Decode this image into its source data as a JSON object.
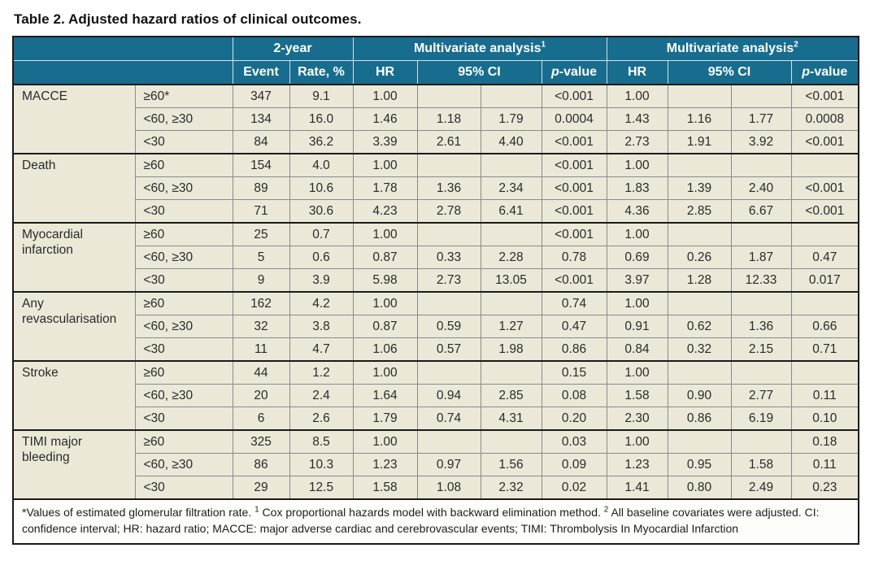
{
  "page": {
    "title": "Table 2. Adjusted hazard ratios of clinical outcomes."
  },
  "colors": {
    "header_bg": "#186d8e",
    "header_text": "#ffffff",
    "body_bg": "#ece8d8",
    "footnote_bg": "#fdfdfa",
    "border_dark": "#1a1a1a",
    "border_gray": "#8a8a8a"
  },
  "table": {
    "header": {
      "top": [
        {
          "label": "2-year",
          "span": 2
        },
        {
          "label": "Multivariate analysis",
          "sup": "1",
          "span": 4
        },
        {
          "label": "Multivariate analysis",
          "sup": "2",
          "span": 4
        }
      ],
      "sub": [
        "Event",
        "Rate, %",
        "HR",
        "95% CI"
      ],
      "p_italic": "p",
      "p_rest": "-value"
    },
    "groups": [
      {
        "outcome": "MACCE",
        "rows": [
          {
            "egfr": "≥60*",
            "event": "347",
            "rate": "9.1",
            "hr1": "1.00",
            "ci1_low": "",
            "ci1_high": "",
            "p1": "<0.001",
            "hr2": "1.00",
            "ci2_low": "",
            "ci2_high": "",
            "p2": "<0.001"
          },
          {
            "egfr": "<60, ≥30",
            "event": "134",
            "rate": "16.0",
            "hr1": "1.46",
            "ci1_low": "1.18",
            "ci1_high": "1.79",
            "p1": "0.0004",
            "hr2": "1.43",
            "ci2_low": "1.16",
            "ci2_high": "1.77",
            "p2": "0.0008"
          },
          {
            "egfr": "<30",
            "event": "84",
            "rate": "36.2",
            "hr1": "3.39",
            "ci1_low": "2.61",
            "ci1_high": "4.40",
            "p1": "<0.001",
            "hr2": "2.73",
            "ci2_low": "1.91",
            "ci2_high": "3.92",
            "p2": "<0.001"
          }
        ]
      },
      {
        "outcome": "Death",
        "rows": [
          {
            "egfr": "≥60",
            "event": "154",
            "rate": "4.0",
            "hr1": "1.00",
            "ci1_low": "",
            "ci1_high": "",
            "p1": "<0.001",
            "hr2": "1.00",
            "ci2_low": "",
            "ci2_high": "",
            "p2": ""
          },
          {
            "egfr": "<60, ≥30",
            "event": "89",
            "rate": "10.6",
            "hr1": "1.78",
            "ci1_low": "1.36",
            "ci1_high": "2.34",
            "p1": "<0.001",
            "hr2": "1.83",
            "ci2_low": "1.39",
            "ci2_high": "2.40",
            "p2": "<0.001"
          },
          {
            "egfr": "<30",
            "event": "71",
            "rate": "30.6",
            "hr1": "4.23",
            "ci1_low": "2.78",
            "ci1_high": "6.41",
            "p1": "<0.001",
            "hr2": "4.36",
            "ci2_low": "2.85",
            "ci2_high": "6.67",
            "p2": "<0.001"
          }
        ]
      },
      {
        "outcome": "Myocardial infarction",
        "rows": [
          {
            "egfr": "≥60",
            "event": "25",
            "rate": "0.7",
            "hr1": "1.00",
            "ci1_low": "",
            "ci1_high": "",
            "p1": "<0.001",
            "hr2": "1.00",
            "ci2_low": "",
            "ci2_high": "",
            "p2": ""
          },
          {
            "egfr": "<60, ≥30",
            "event": "5",
            "rate": "0.6",
            "hr1": "0.87",
            "ci1_low": "0.33",
            "ci1_high": "2.28",
            "p1": "0.78",
            "hr2": "0.69",
            "ci2_low": "0.26",
            "ci2_high": "1.87",
            "p2": "0.47"
          },
          {
            "egfr": "<30",
            "event": "9",
            "rate": "3.9",
            "hr1": "5.98",
            "ci1_low": "2.73",
            "ci1_high": "13.05",
            "p1": "<0.001",
            "hr2": "3.97",
            "ci2_low": "1.28",
            "ci2_high": "12.33",
            "p2": "0.017"
          }
        ]
      },
      {
        "outcome": "Any revascularisation",
        "rows": [
          {
            "egfr": "≥60",
            "event": "162",
            "rate": "4.2",
            "hr1": "1.00",
            "ci1_low": "",
            "ci1_high": "",
            "p1": "0.74",
            "hr2": "1.00",
            "ci2_low": "",
            "ci2_high": "",
            "p2": ""
          },
          {
            "egfr": "<60, ≥30",
            "event": "32",
            "rate": "3.8",
            "hr1": "0.87",
            "ci1_low": "0.59",
            "ci1_high": "1.27",
            "p1": "0.47",
            "hr2": "0.91",
            "ci2_low": "0.62",
            "ci2_high": "1.36",
            "p2": "0.66"
          },
          {
            "egfr": "<30",
            "event": "11",
            "rate": "4.7",
            "hr1": "1.06",
            "ci1_low": "0.57",
            "ci1_high": "1.98",
            "p1": "0.86",
            "hr2": "0.84",
            "ci2_low": "0.32",
            "ci2_high": "2.15",
            "p2": "0.71"
          }
        ]
      },
      {
        "outcome": "Stroke",
        "rows": [
          {
            "egfr": "≥60",
            "event": "44",
            "rate": "1.2",
            "hr1": "1.00",
            "ci1_low": "",
            "ci1_high": "",
            "p1": "0.15",
            "hr2": "1.00",
            "ci2_low": "",
            "ci2_high": "",
            "p2": ""
          },
          {
            "egfr": "<60, ≥30",
            "event": "20",
            "rate": "2.4",
            "hr1": "1.64",
            "ci1_low": "0.94",
            "ci1_high": "2.85",
            "p1": "0.08",
            "hr2": "1.58",
            "ci2_low": "0.90",
            "ci2_high": "2.77",
            "p2": "0.11"
          },
          {
            "egfr": "<30",
            "event": "6",
            "rate": "2.6",
            "hr1": "1.79",
            "ci1_low": "0.74",
            "ci1_high": "4.31",
            "p1": "0.20",
            "hr2": "2.30",
            "ci2_low": "0.86",
            "ci2_high": "6.19",
            "p2": "0.10"
          }
        ]
      },
      {
        "outcome": "TIMI major bleeding",
        "rows": [
          {
            "egfr": "≥60",
            "event": "325",
            "rate": "8.5",
            "hr1": "1.00",
            "ci1_low": "",
            "ci1_high": "",
            "p1": "0.03",
            "hr2": "1.00",
            "ci2_low": "",
            "ci2_high": "",
            "p2": "0.18"
          },
          {
            "egfr": "<60, ≥30",
            "event": "86",
            "rate": "10.3",
            "hr1": "1.23",
            "ci1_low": "0.97",
            "ci1_high": "1.56",
            "p1": "0.09",
            "hr2": "1.23",
            "ci2_low": "0.95",
            "ci2_high": "1.58",
            "p2": "0.11"
          },
          {
            "egfr": "<30",
            "event": "29",
            "rate": "12.5",
            "hr1": "1.58",
            "ci1_low": "1.08",
            "ci1_high": "2.32",
            "p1": "0.02",
            "hr2": "1.41",
            "ci2_low": "0.80",
            "ci2_high": "2.49",
            "p2": "0.23"
          }
        ]
      }
    ],
    "footnote_parts": [
      {
        "text": "*Values of estimated glomerular filtration rate. "
      },
      {
        "sup": "1"
      },
      {
        "text": " Cox proportional hazards model with backward elimination method. "
      },
      {
        "sup": "2"
      },
      {
        "text": " All baseline covariates were adjusted. CI: confidence interval; HR: hazard ratio; MACCE: major adverse cardiac and cerebrovascular events; TIMI: Thrombolysis In Myocardial Infarction"
      }
    ]
  }
}
